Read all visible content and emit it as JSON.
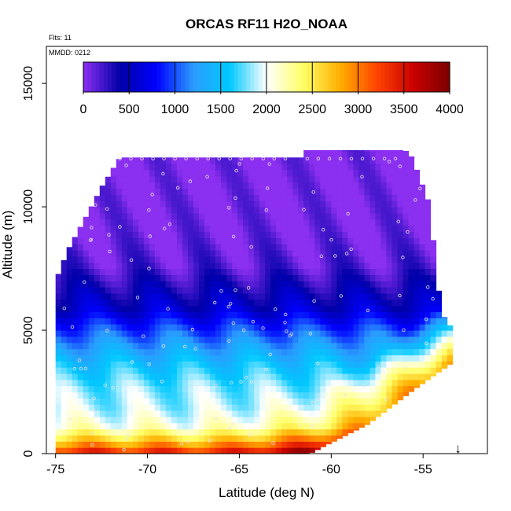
{
  "chart_data": {
    "type": "heatmap",
    "title": "ORCAS RF11 H2O_NOAA",
    "xlabel": "Latitude (deg N)",
    "ylabel": "Altitude (m)",
    "annotations": {
      "flights": "Flts: 11",
      "date": "MMDD: 0212"
    },
    "xlim": [
      -75.5,
      -51.5
    ],
    "ylim": [
      0,
      16500
    ],
    "x_ticks": [
      -75,
      -70,
      -65,
      -60,
      -55
    ],
    "y_ticks": [
      0,
      5000,
      10000,
      15000
    ],
    "colorbar": {
      "range": [
        0,
        4000
      ],
      "ticks": [
        0,
        500,
        1000,
        1500,
        2000,
        2500,
        3000,
        3500,
        4000
      ],
      "colors": [
        "#8b2ff0",
        "#0000a8",
        "#0000ff",
        "#2b9bff",
        "#00c8ff",
        "#ffffff",
        "#ffff66",
        "#ffb000",
        "#ff4400",
        "#cc0000",
        "#7a0000"
      ]
    },
    "profile_top_altitude_m": [
      [
        -75,
        7000
      ],
      [
        -74.3,
        8300
      ],
      [
        -73.2,
        9800
      ],
      [
        -72.5,
        10800
      ],
      [
        -71.5,
        12000
      ],
      [
        -61.5,
        12000
      ],
      [
        -61.4,
        12300
      ],
      [
        -56,
        12300
      ],
      [
        -55.6,
        12000
      ],
      [
        -54.6,
        10000
      ],
      [
        -54.4,
        8200
      ],
      [
        -54.2,
        6800
      ],
      [
        -53.9,
        5600
      ],
      [
        -53.6,
        5200
      ]
    ],
    "profile_bottom_altitude_m": [
      [
        -75,
        0
      ],
      [
        -61.2,
        0
      ],
      [
        -58,
        1200
      ],
      [
        -55.5,
        2600
      ],
      [
        -53.4,
        3700
      ]
    ],
    "altitude_bands": [
      {
        "alt_m": 11000,
        "value": 5
      },
      {
        "alt_m": 9000,
        "value": 40
      },
      {
        "alt_m": 7600,
        "value": 150
      },
      {
        "alt_m": 6500,
        "value": 420
      },
      {
        "alt_m": 5800,
        "value": 600
      },
      {
        "alt_m": 5200,
        "value": 900
      },
      {
        "alt_m": 4500,
        "value": 1200
      },
      {
        "alt_m": 3600,
        "value": 1550
      },
      {
        "alt_m": 2700,
        "value": 1800
      },
      {
        "alt_m": 1800,
        "value": 1900
      },
      {
        "alt_m": 1100,
        "value": 2100
      },
      {
        "alt_m": 500,
        "value": 2700
      },
      {
        "alt_m": 100,
        "value": 3300
      }
    ],
    "current_position": {
      "lat": -53.1,
      "marker": "↓"
    }
  }
}
